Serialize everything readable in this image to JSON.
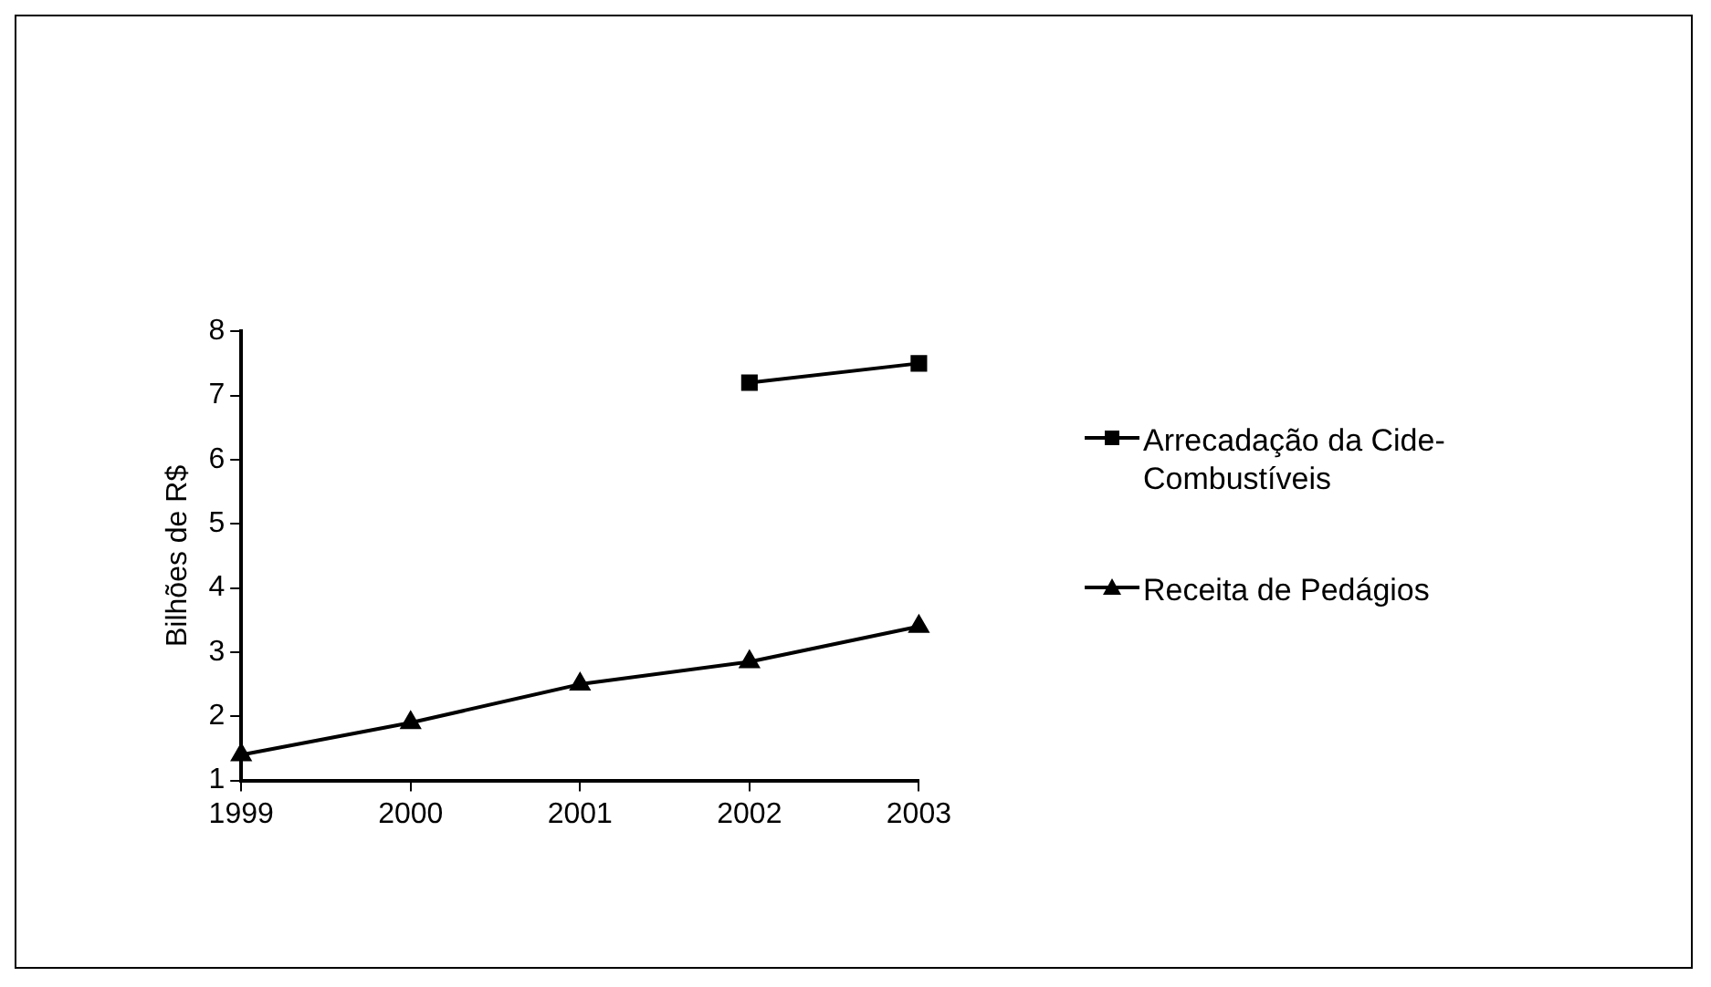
{
  "chart_data": {
    "type": "line",
    "ylabel": "Bilhões de R$",
    "categories": [
      "1999",
      "2000",
      "2001",
      "2002",
      "2003"
    ],
    "series": [
      {
        "name": "Arrecadação da Cide-Combustíveis",
        "color": "#000000",
        "marker": "square",
        "values": [
          null,
          null,
          null,
          7.2,
          7.5
        ]
      },
      {
        "name": "Receita de Pedágios",
        "color": "#000000",
        "marker": "triangle",
        "values": [
          1.4,
          1.9,
          2.5,
          2.85,
          3.4
        ]
      }
    ],
    "ylim": [
      1,
      8
    ],
    "yticks": [
      1,
      2,
      3,
      4,
      5,
      6,
      7,
      8
    ],
    "grid": false,
    "legend": "right"
  }
}
